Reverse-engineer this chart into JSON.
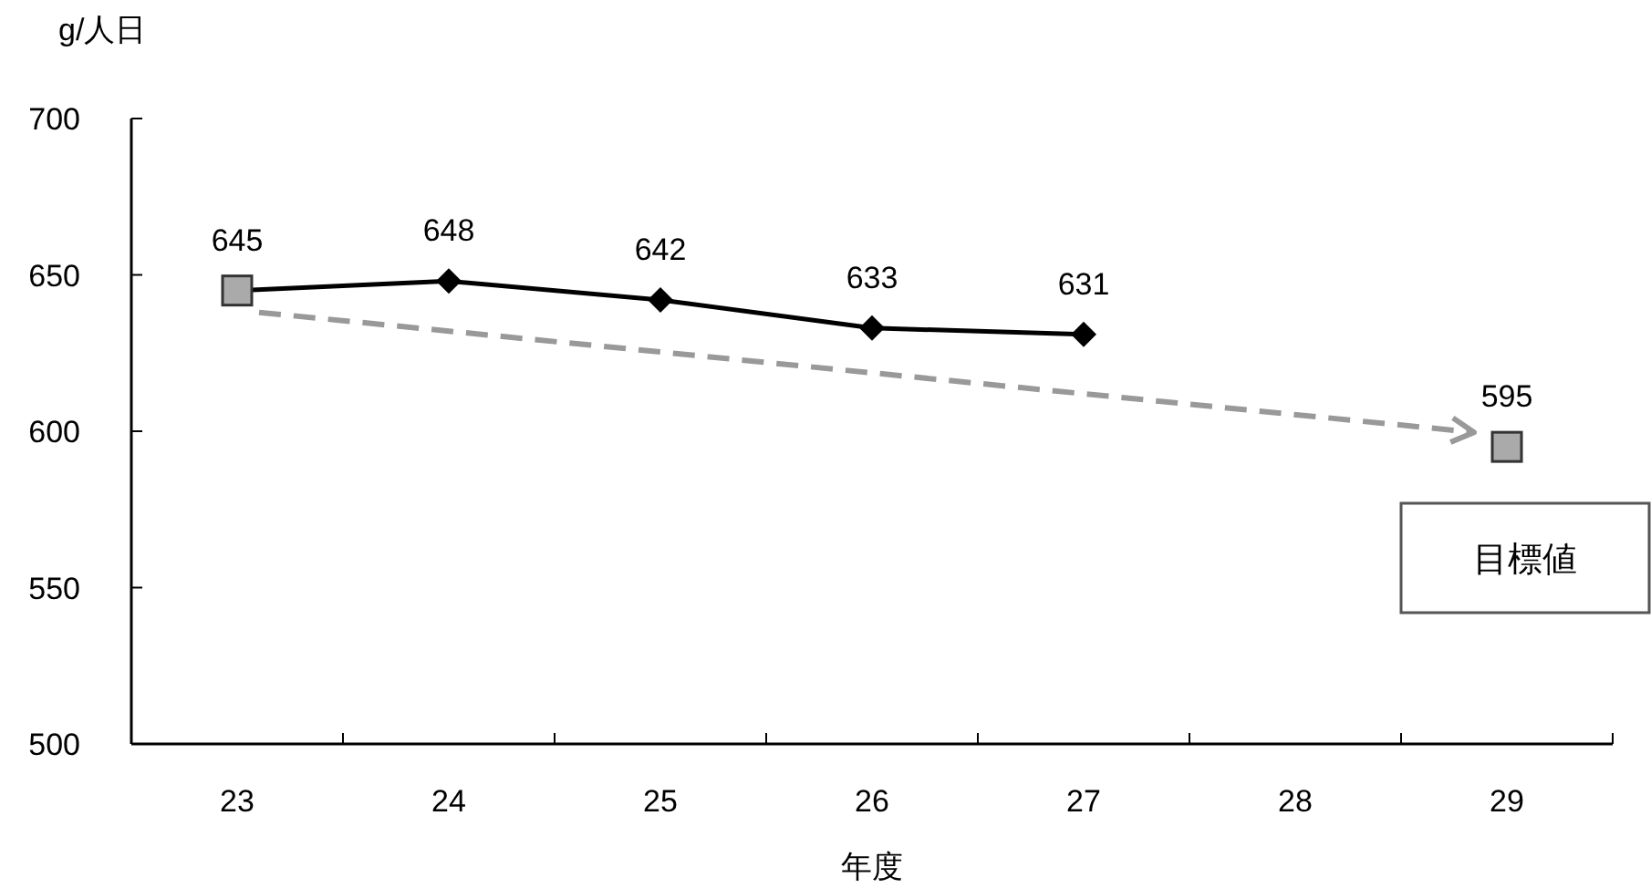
{
  "chart_data": {
    "type": "line",
    "ylabel": "g/人日",
    "xlabel": "年度",
    "categories": [
      "23",
      "24",
      "25",
      "26",
      "27",
      "28",
      "29"
    ],
    "series": [
      {
        "color": "#000000",
        "marker": "diamond",
        "line_style": "solid",
        "values": [
          645,
          648,
          642,
          633,
          631,
          null,
          null
        ],
        "value_labels": [
          "645",
          "648",
          "642",
          "633",
          "631",
          null,
          null
        ]
      },
      {
        "type": "scatter",
        "color": "#aaaaaa",
        "marker": "square",
        "values": [
          645,
          null,
          null,
          null,
          null,
          null,
          595
        ],
        "value_labels": [
          null,
          null,
          null,
          null,
          null,
          null,
          "595"
        ]
      }
    ],
    "ylim": [
      500,
      700
    ],
    "yticks": [
      500,
      550,
      600,
      650,
      700
    ],
    "grid": false,
    "annotations": [
      "目標値"
    ]
  }
}
